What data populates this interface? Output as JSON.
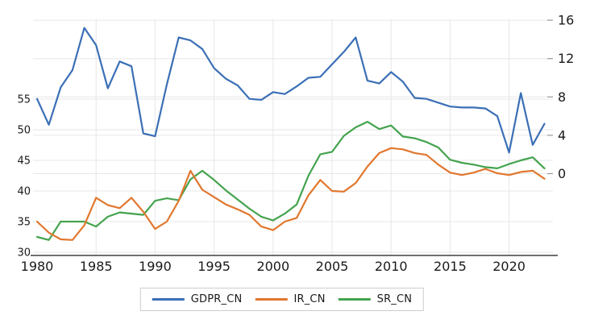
{
  "chart_data": {
    "type": "line",
    "title": "",
    "xlabel": "",
    "ylabel_left": "",
    "ylabel_right": "",
    "x": [
      1980,
      1981,
      1982,
      1983,
      1984,
      1985,
      1986,
      1987,
      1988,
      1989,
      1990,
      1991,
      1992,
      1993,
      1994,
      1995,
      1996,
      1997,
      1998,
      1999,
      2000,
      2001,
      2002,
      2003,
      2004,
      2005,
      2006,
      2007,
      2008,
      2009,
      2010,
      2011,
      2012,
      2013,
      2014,
      2015,
      2016,
      2017,
      2018,
      2019,
      2020,
      2021,
      2022,
      2023
    ],
    "series": [
      {
        "name": "GDPR_CN",
        "axis": "right",
        "color": "#3B6FB6",
        "values": [
          7.8,
          5.1,
          9.0,
          10.8,
          15.2,
          13.4,
          8.9,
          11.7,
          11.2,
          4.2,
          3.9,
          9.3,
          14.2,
          13.9,
          13.0,
          11.0,
          9.9,
          9.2,
          7.8,
          7.7,
          8.5,
          8.3,
          9.1,
          10.0,
          10.1,
          11.4,
          12.7,
          14.2,
          9.7,
          9.4,
          10.6,
          9.6,
          7.9,
          7.8,
          7.4,
          7.0,
          6.9,
          6.9,
          6.8,
          6.0,
          2.2,
          8.4,
          3.0,
          5.2
        ]
      },
      {
        "name": "IR_CN",
        "axis": "left",
        "color": "#E1772E",
        "values": [
          35.0,
          33.2,
          32.1,
          32.0,
          34.4,
          38.9,
          37.7,
          37.2,
          38.9,
          36.6,
          33.8,
          35.0,
          38.4,
          43.3,
          40.2,
          39.0,
          37.8,
          37.0,
          36.1,
          34.2,
          33.6,
          35.0,
          35.6,
          39.3,
          41.8,
          40.0,
          39.9,
          41.3,
          44.0,
          46.2,
          47.0,
          46.8,
          46.2,
          45.9,
          44.3,
          43.0,
          42.6,
          43.0,
          43.6,
          42.9,
          42.6,
          43.1,
          43.3,
          42.0
        ]
      },
      {
        "name": "SR_CN",
        "axis": "left",
        "color": "#44A34E",
        "values": [
          32.5,
          32.0,
          35.0,
          35.0,
          35.0,
          34.2,
          35.8,
          36.5,
          36.3,
          36.1,
          38.4,
          38.8,
          38.5,
          41.9,
          43.3,
          41.8,
          40.1,
          38.6,
          37.1,
          35.8,
          35.2,
          36.3,
          37.8,
          42.5,
          46.0,
          46.4,
          49.0,
          50.4,
          51.3,
          50.1,
          50.7,
          48.9,
          48.6,
          48.0,
          47.1,
          45.1,
          44.6,
          44.3,
          43.9,
          43.7,
          44.4,
          45.0,
          45.5,
          43.7
        ]
      }
    ],
    "axes": {
      "left_ticks": [
        30,
        35,
        40,
        45,
        50,
        55
      ],
      "right_ticks": [
        0,
        4,
        8,
        12,
        16
      ],
      "x_ticks": [
        1980,
        1985,
        1990,
        1995,
        2000,
        2005,
        2010,
        2015,
        2020
      ],
      "ylim_left": [
        29.5,
        57.5
      ],
      "ylim_right": [
        -0.2,
        17.0
      ],
      "xlim": [
        1980,
        2023
      ],
      "grid": true
    },
    "legend": {
      "position": "bottom-center",
      "framed": true,
      "entries": [
        "GDPR_CN",
        "IR_CN",
        "SR_CN"
      ]
    },
    "colors": {
      "grid": "#e7e7e7",
      "axis_line": "#1a1a1a",
      "tick_text": "#1a1a1a",
      "tick_dash": "#999999",
      "background": "#ffffff",
      "legend_border": "#cccccc"
    }
  }
}
